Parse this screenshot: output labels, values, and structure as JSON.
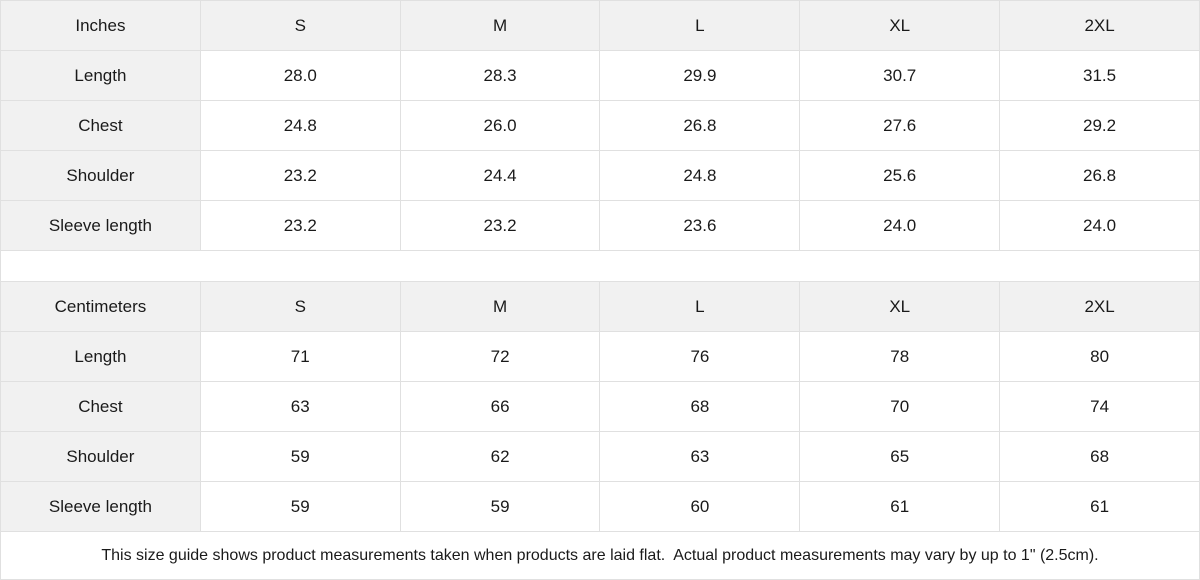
{
  "colors": {
    "header_bg": "#f1f1f1",
    "label_bg": "#f1f1f1",
    "border": "#e0e0e0",
    "text": "#1a1a1a",
    "row_bg": "#ffffff"
  },
  "tables": [
    {
      "unit_label": "Inches",
      "sizes": [
        "S",
        "M",
        "L",
        "XL",
        "2XL"
      ],
      "rows": [
        {
          "label": "Length",
          "values": [
            "28.0",
            "28.3",
            "29.9",
            "30.7",
            "31.5"
          ]
        },
        {
          "label": "Chest",
          "values": [
            "24.8",
            "26.0",
            "26.8",
            "27.6",
            "29.2"
          ]
        },
        {
          "label": "Shoulder",
          "values": [
            "23.2",
            "24.4",
            "24.8",
            "25.6",
            "26.8"
          ]
        },
        {
          "label": "Sleeve length",
          "values": [
            "23.2",
            "23.2",
            "23.6",
            "24.0",
            "24.0"
          ]
        }
      ]
    },
    {
      "unit_label": "Centimeters",
      "sizes": [
        "S",
        "M",
        "L",
        "XL",
        "2XL"
      ],
      "rows": [
        {
          "label": "Length",
          "values": [
            "71",
            "72",
            "76",
            "78",
            "80"
          ]
        },
        {
          "label": "Chest",
          "values": [
            "63",
            "66",
            "68",
            "70",
            "74"
          ]
        },
        {
          "label": "Shoulder",
          "values": [
            "59",
            "62",
            "63",
            "65",
            "68"
          ]
        },
        {
          "label": "Sleeve length",
          "values": [
            "59",
            "59",
            "60",
            "61",
            "61"
          ]
        }
      ]
    }
  ],
  "footer": {
    "note": "This size guide shows product measurements taken when products are laid flat.  Actual product measurements may vary by up to 1\" (2.5cm)."
  }
}
